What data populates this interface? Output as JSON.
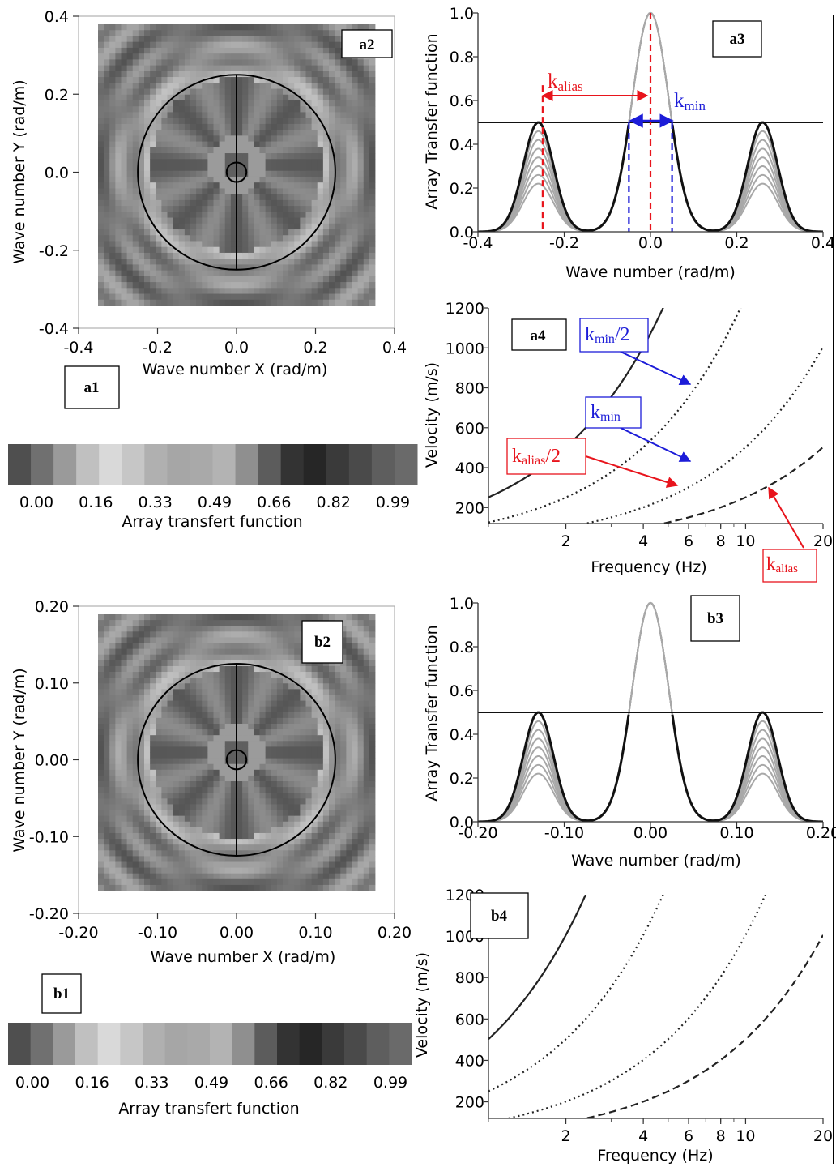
{
  "colors": {
    "red": "#e8141c",
    "blue": "#1c1cd8",
    "curve_gray": "#a8a8a8",
    "curve_black": "#111111",
    "colorbar": [
      "#4f4f4f",
      "#707070",
      "#9a9a9a",
      "#c0c0c0",
      "#d9d9d9",
      "#c6c6c6",
      "#b0b0b0",
      "#a6a6a6",
      "#a9a9a9",
      "#b3b3b3",
      "#8f8f8f",
      "#5c5c5c",
      "#333333",
      "#262626",
      "#3a3a3a",
      "#4a4a4a",
      "#5e5e5e",
      "#6a6a6a"
    ]
  },
  "chart_data": [
    {
      "id": "a1",
      "type": "heatmap",
      "tag": "a1",
      "inset_tag": "a2",
      "xlabel": "Wave number X (rad/m)",
      "ylabel": "Wave number Y (rad/m)",
      "xlim": [
        -0.4,
        0.4
      ],
      "ylim": [
        -0.4,
        0.4
      ],
      "xticks": [
        "-0.4",
        "-0.2",
        "0.0",
        "0.2",
        "0.4"
      ],
      "yticks": [
        "-0.4",
        "-0.2",
        "0.0",
        "0.2",
        "0.4"
      ],
      "circle_radii": [
        0.25,
        0.025
      ],
      "colorbar_ticks": [
        "0.00",
        "0.16",
        "0.33",
        "0.49",
        "0.66",
        "0.82",
        "0.99"
      ],
      "colorbar_label": "Array transfert function"
    },
    {
      "id": "a3",
      "type": "line",
      "tag": "a3",
      "xlabel": "Wave number (rad/m)",
      "ylabel": "Array Transfer function",
      "xlim": [
        -0.4,
        0.4
      ],
      "ylim": [
        0.0,
        1.0
      ],
      "xticks": [
        "-0.4",
        "-0.2",
        "0.0",
        "0.2",
        "0.4"
      ],
      "yticks": [
        "0.0",
        "0.2",
        "0.4",
        "0.6",
        "0.8",
        "1.0"
      ],
      "kmin": 0.05,
      "kalias": 0.25,
      "threshold": 0.5,
      "sidelobe_k": 0.26,
      "annotations": {
        "kalias_base": "k",
        "kalias_sub": "alias",
        "kmin_base": "k",
        "kmin_sub": "min"
      }
    },
    {
      "id": "a4",
      "type": "line",
      "tag": "a4",
      "xlabel": "Frequency (Hz)",
      "ylabel": "Velocity (m/s)",
      "xlim": [
        1,
        20
      ],
      "ylim": [
        120,
        1200
      ],
      "xscale": "log",
      "xticks": [
        "2",
        "4",
        "6",
        "8",
        "10",
        "20"
      ],
      "yticks": [
        "200",
        "400",
        "600",
        "800",
        "1000",
        "1200"
      ],
      "k_values": {
        "kmin_half": 0.025,
        "kmin": 0.05,
        "kalias_half": 0.125,
        "kalias": 0.25
      },
      "annotations": {
        "kmin_half_base": "k",
        "kmin_half_sub": "min",
        "kmin_half_suffix": "/2",
        "kmin_base": "k",
        "kmin_sub": "min",
        "kalias_half_base": "k",
        "kalias_half_sub": "alias",
        "kalias_half_suffix": "/2",
        "kalias_base": "k",
        "kalias_sub": "alias"
      }
    },
    {
      "id": "b1",
      "type": "heatmap",
      "tag": "b1",
      "inset_tag": "b2",
      "xlabel": "Wave number X (rad/m)",
      "ylabel": "Wave number Y (rad/m)",
      "xlim": [
        -0.2,
        0.2
      ],
      "ylim": [
        -0.2,
        0.2
      ],
      "xticks": [
        "-0.20",
        "-0.10",
        "0.00",
        "0.10",
        "0.20"
      ],
      "yticks": [
        "-0.20",
        "-0.10",
        "0.00",
        "0.10",
        "0.20"
      ],
      "circle_radii": [
        0.125,
        0.0125
      ],
      "colorbar_ticks": [
        "0.00",
        "0.16",
        "0.33",
        "0.49",
        "0.66",
        "0.82",
        "0.99"
      ],
      "colorbar_label": "Array transfert function"
    },
    {
      "id": "b3",
      "type": "line",
      "tag": "b3",
      "xlabel": "Wave number (rad/m)",
      "ylabel": "Array Transfer function",
      "xlim": [
        -0.2,
        0.2
      ],
      "ylim": [
        0.0,
        1.0
      ],
      "xticks": [
        "-0.20",
        "-0.10",
        "0.00",
        "0.10",
        "0.20"
      ],
      "yticks": [
        "0.0",
        "0.2",
        "0.4",
        "0.6",
        "0.8",
        "1.0"
      ],
      "kmin": 0.025,
      "kalias": 0.125,
      "threshold": 0.5,
      "sidelobe_k": 0.13
    },
    {
      "id": "b4",
      "type": "line",
      "tag": "b4",
      "xlabel": "Frequency (Hz)",
      "ylabel": "Velocity (m/s)",
      "xlim": [
        1,
        20
      ],
      "ylim": [
        120,
        1200
      ],
      "xscale": "log",
      "xticks": [
        "2",
        "4",
        "6",
        "8",
        "10",
        "20"
      ],
      "yticks": [
        "200",
        "400",
        "600",
        "800",
        "1000",
        "1200"
      ],
      "k_values": {
        "kmin_half": 0.0125,
        "kmin": 0.025,
        "kalias_half": 0.0625,
        "kalias": 0.125
      }
    }
  ]
}
